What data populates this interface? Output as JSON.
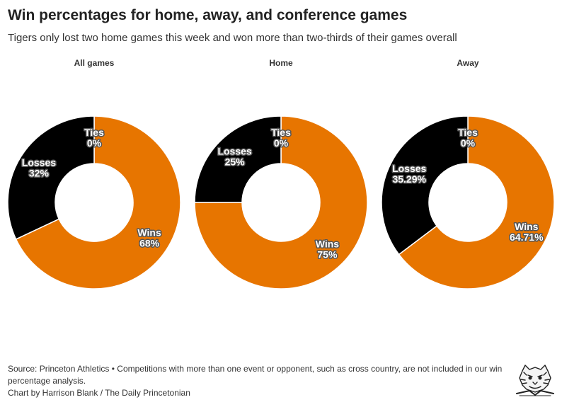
{
  "header": {
    "title": "Win percentages for home, away, and conference games",
    "subtitle": "Tigers only lost two home games this week and won more than two-thirds of their games overall"
  },
  "footer": {
    "source": "Source: Princeton Athletics • Competitions with more than one event or opponent, such as cross country, are not included in our win percentage analysis.",
    "credit": "Chart by Harrison Blank / The Daily Princetonian"
  },
  "logo_icon": "tiger-head-logo-icon",
  "colors": {
    "wins": "#e77500",
    "losses": "#000000",
    "ties": "#8a8a8a"
  },
  "chart_data": [
    {
      "type": "pie",
      "donut": true,
      "title": "All games",
      "categories": [
        "Wins",
        "Losses",
        "Ties"
      ],
      "values": [
        68,
        32,
        0
      ],
      "labels": [
        "68%",
        "32%",
        "0%"
      ]
    },
    {
      "type": "pie",
      "donut": true,
      "title": "Home",
      "categories": [
        "Wins",
        "Losses",
        "Ties"
      ],
      "values": [
        75,
        25,
        0
      ],
      "labels": [
        "75%",
        "25%",
        "0%"
      ]
    },
    {
      "type": "pie",
      "donut": true,
      "title": "Away",
      "categories": [
        "Wins",
        "Losses",
        "Ties"
      ],
      "values": [
        64.71,
        35.29,
        0
      ],
      "labels": [
        "64.71%",
        "35.29%",
        "0%"
      ]
    }
  ]
}
